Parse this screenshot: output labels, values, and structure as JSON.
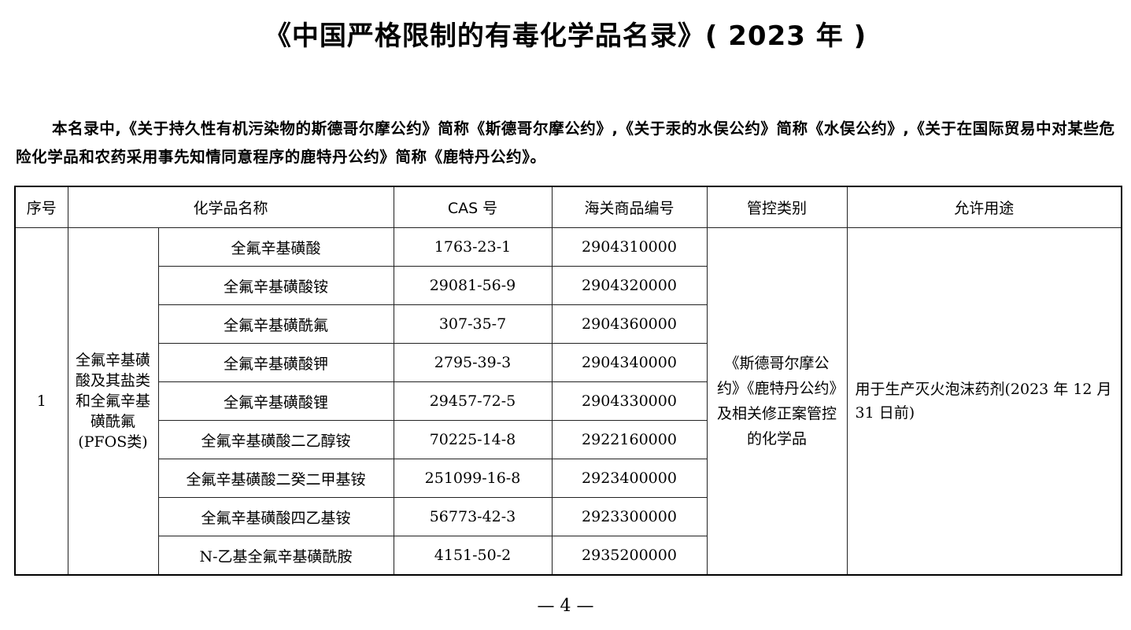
{
  "title": "《中国严格限制的有毒化学品名录》( 2023 年 )",
  "intro": "本名录中,《关于持久性有机污染物的斯德哥尔摩公约》简称《斯德哥尔摩公约》,《关于汞的水俣公约》简称《水俣公约》,《关于在国际贸易中对某些危险化学品和农药采用事先知情同意程序的鹿特丹公约》简称《鹿特丹公约》。",
  "table": {
    "headers": [
      "序号",
      "化学品名称",
      "CAS 号",
      "海关商品编号",
      "管控类别",
      "允许用途"
    ],
    "group": {
      "no": "1",
      "name": "全氟辛基磺酸及其盐类和全氟辛基磺酰氟(PFOS类)",
      "control": "《斯德哥尔摩公约》《鹿特丹公约》及相关修正案管控的化学品",
      "use": "用于生产灭火泡沫药剂(2023 年 12 月 31 日前)"
    },
    "rows": [
      {
        "name": "全氟辛基磺酸",
        "cas": "1763-23-1",
        "hs": "2904310000"
      },
      {
        "name": "全氟辛基磺酸铵",
        "cas": "29081-56-9",
        "hs": "2904320000"
      },
      {
        "name": "全氟辛基磺酰氟",
        "cas": "307-35-7",
        "hs": "2904360000"
      },
      {
        "name": "全氟辛基磺酸钾",
        "cas": "2795-39-3",
        "hs": "2904340000"
      },
      {
        "name": "全氟辛基磺酸锂",
        "cas": "29457-72-5",
        "hs": "2904330000"
      },
      {
        "name": "全氟辛基磺酸二乙醇铵",
        "cas": "70225-14-8",
        "hs": "2922160000"
      },
      {
        "name": "全氟辛基磺酸二癸二甲基铵",
        "cas": "251099-16-8",
        "hs": "2923400000"
      },
      {
        "name": "全氟辛基磺酸四乙基铵",
        "cas": "56773-42-3",
        "hs": "2923300000"
      },
      {
        "name": "N-乙基全氟辛基磺酰胺",
        "cas": "4151-50-2",
        "hs": "2935200000"
      }
    ]
  },
  "page_number": "— 4 —"
}
